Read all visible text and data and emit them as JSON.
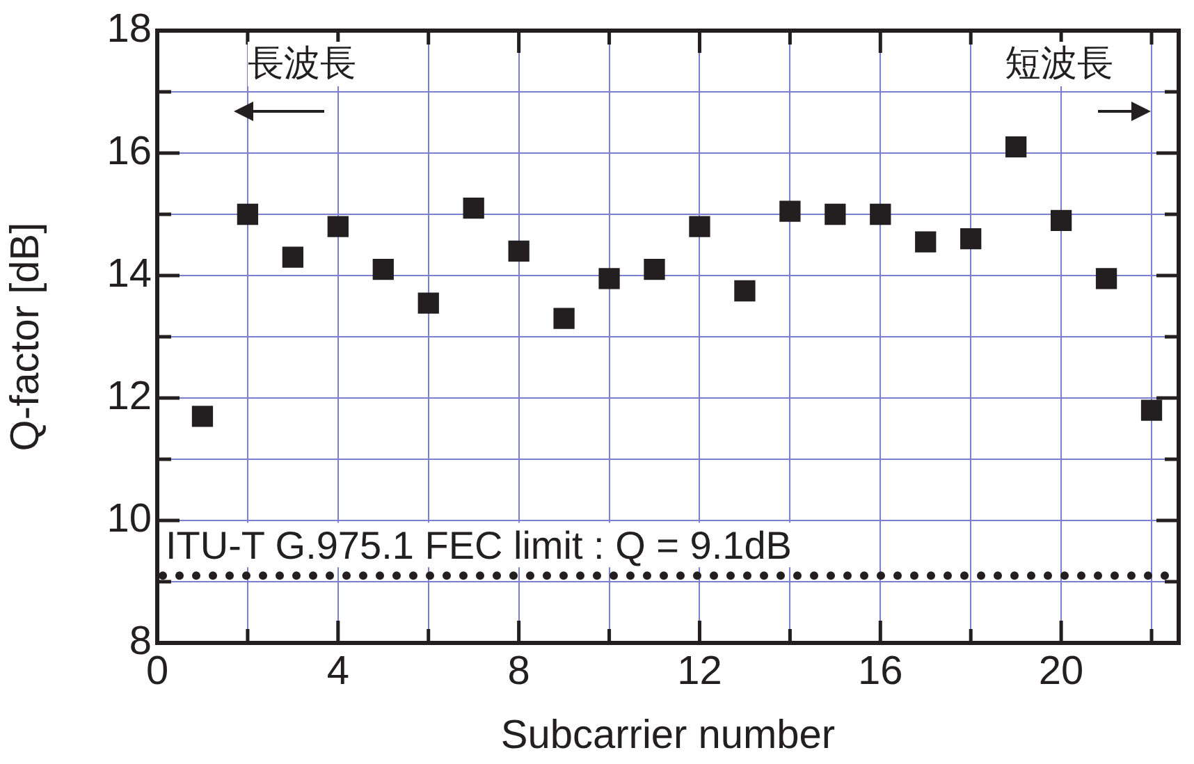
{
  "chart_data": {
    "type": "scatter",
    "xlabel": "Subcarrier number",
    "ylabel": "Q-factor [dB]",
    "x": [
      1,
      2,
      3,
      4,
      5,
      6,
      7,
      8,
      9,
      10,
      11,
      12,
      13,
      14,
      15,
      16,
      17,
      18,
      19,
      20,
      21,
      22
    ],
    "series": [
      {
        "color": "#231f20",
        "values": [
          11.7,
          15.0,
          14.3,
          14.8,
          14.1,
          13.55,
          15.1,
          14.4,
          13.3,
          13.95,
          14.1,
          14.8,
          13.75,
          15.05,
          15.0,
          15.0,
          14.55,
          14.6,
          16.1,
          14.9,
          13.95,
          11.8
        ]
      }
    ],
    "xlim": [
      0,
      22.6
    ],
    "xticks": [
      0,
      {
        "value": 2,
        "label": null
      },
      4,
      {
        "value": 6,
        "label": null
      },
      8,
      {
        "value": 10,
        "label": null
      },
      12,
      {
        "value": 14,
        "label": null
      },
      16,
      {
        "value": 18,
        "label": null
      },
      20,
      {
        "value": 22,
        "label": null
      }
    ],
    "ylim": [
      8,
      18
    ],
    "yticks": [
      8,
      {
        "value": 9,
        "label": null
      },
      10,
      {
        "value": 11,
        "label": null
      },
      12,
      {
        "value": 13,
        "label": null
      },
      14,
      {
        "value": 15,
        "label": null
      },
      16,
      {
        "value": 17,
        "label": null
      },
      18
    ],
    "ref_lines": [
      {
        "axis": "y",
        "value": 9.1,
        "label": "ITU-T G.975.1 FEC limit : Q = 9.1dB",
        "color": "#231f20",
        "line_style": "dotted"
      }
    ],
    "annotations": [
      "長波長",
      "短波長"
    ],
    "grid": true,
    "legend": false,
    "marker": "square"
  }
}
